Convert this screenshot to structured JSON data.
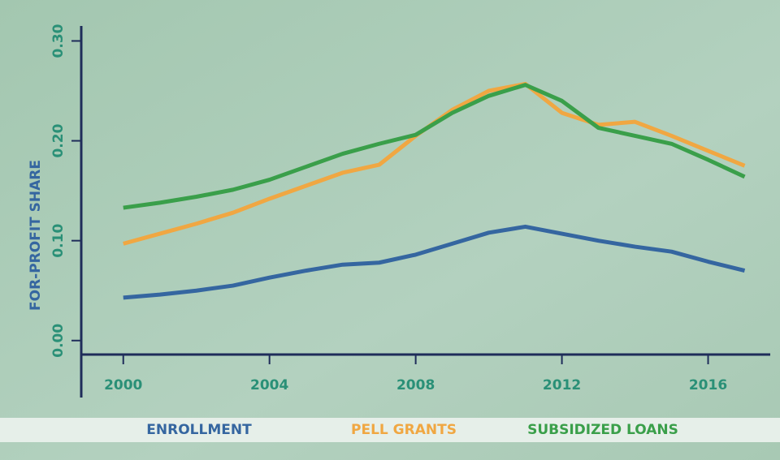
{
  "chart_data": {
    "type": "line",
    "ylabel": "FOR-PROFIT SHARE",
    "x": [
      2000,
      2001,
      2002,
      2003,
      2004,
      2005,
      2006,
      2007,
      2008,
      2009,
      2010,
      2011,
      2012,
      2013,
      2014,
      2015,
      2016,
      2017
    ],
    "series": [
      {
        "name": "ENROLLMENT",
        "color": "#3566a0",
        "values": [
          0.043,
          0.046,
          0.05,
          0.055,
          0.063,
          0.07,
          0.076,
          0.078,
          0.086,
          0.097,
          0.108,
          0.114,
          0.107,
          0.1,
          0.094,
          0.089,
          0.079,
          0.07
        ]
      },
      {
        "name": "PELL GRANTS",
        "color": "#f0a742",
        "values": [
          0.097,
          0.107,
          0.117,
          0.128,
          0.142,
          0.155,
          0.168,
          0.176,
          0.205,
          0.231,
          0.25,
          0.257,
          0.228,
          0.216,
          0.219,
          0.205,
          0.19,
          0.175
        ]
      },
      {
        "name": "SUBSIDIZED LOANS",
        "color": "#3a9f4a",
        "values": [
          0.133,
          0.138,
          0.144,
          0.151,
          0.161,
          0.174,
          0.187,
          0.197,
          0.206,
          0.228,
          0.245,
          0.256,
          0.24,
          0.213,
          0.205,
          0.197,
          0.181,
          0.164
        ]
      }
    ],
    "xlim": [
      1998.85,
      2017.7
    ],
    "ylim": [
      -0.014,
      0.315
    ],
    "xticks": [
      2000,
      2004,
      2008,
      2012,
      2016
    ],
    "yticks": [
      {
        "value": 0,
        "label": "0.00"
      },
      {
        "value": 0.1,
        "label": "0.10"
      },
      {
        "value": 0.2,
        "label": "0.20"
      },
      {
        "value": 0.3,
        "label": "0.30"
      }
    ],
    "legend": "bottom"
  }
}
